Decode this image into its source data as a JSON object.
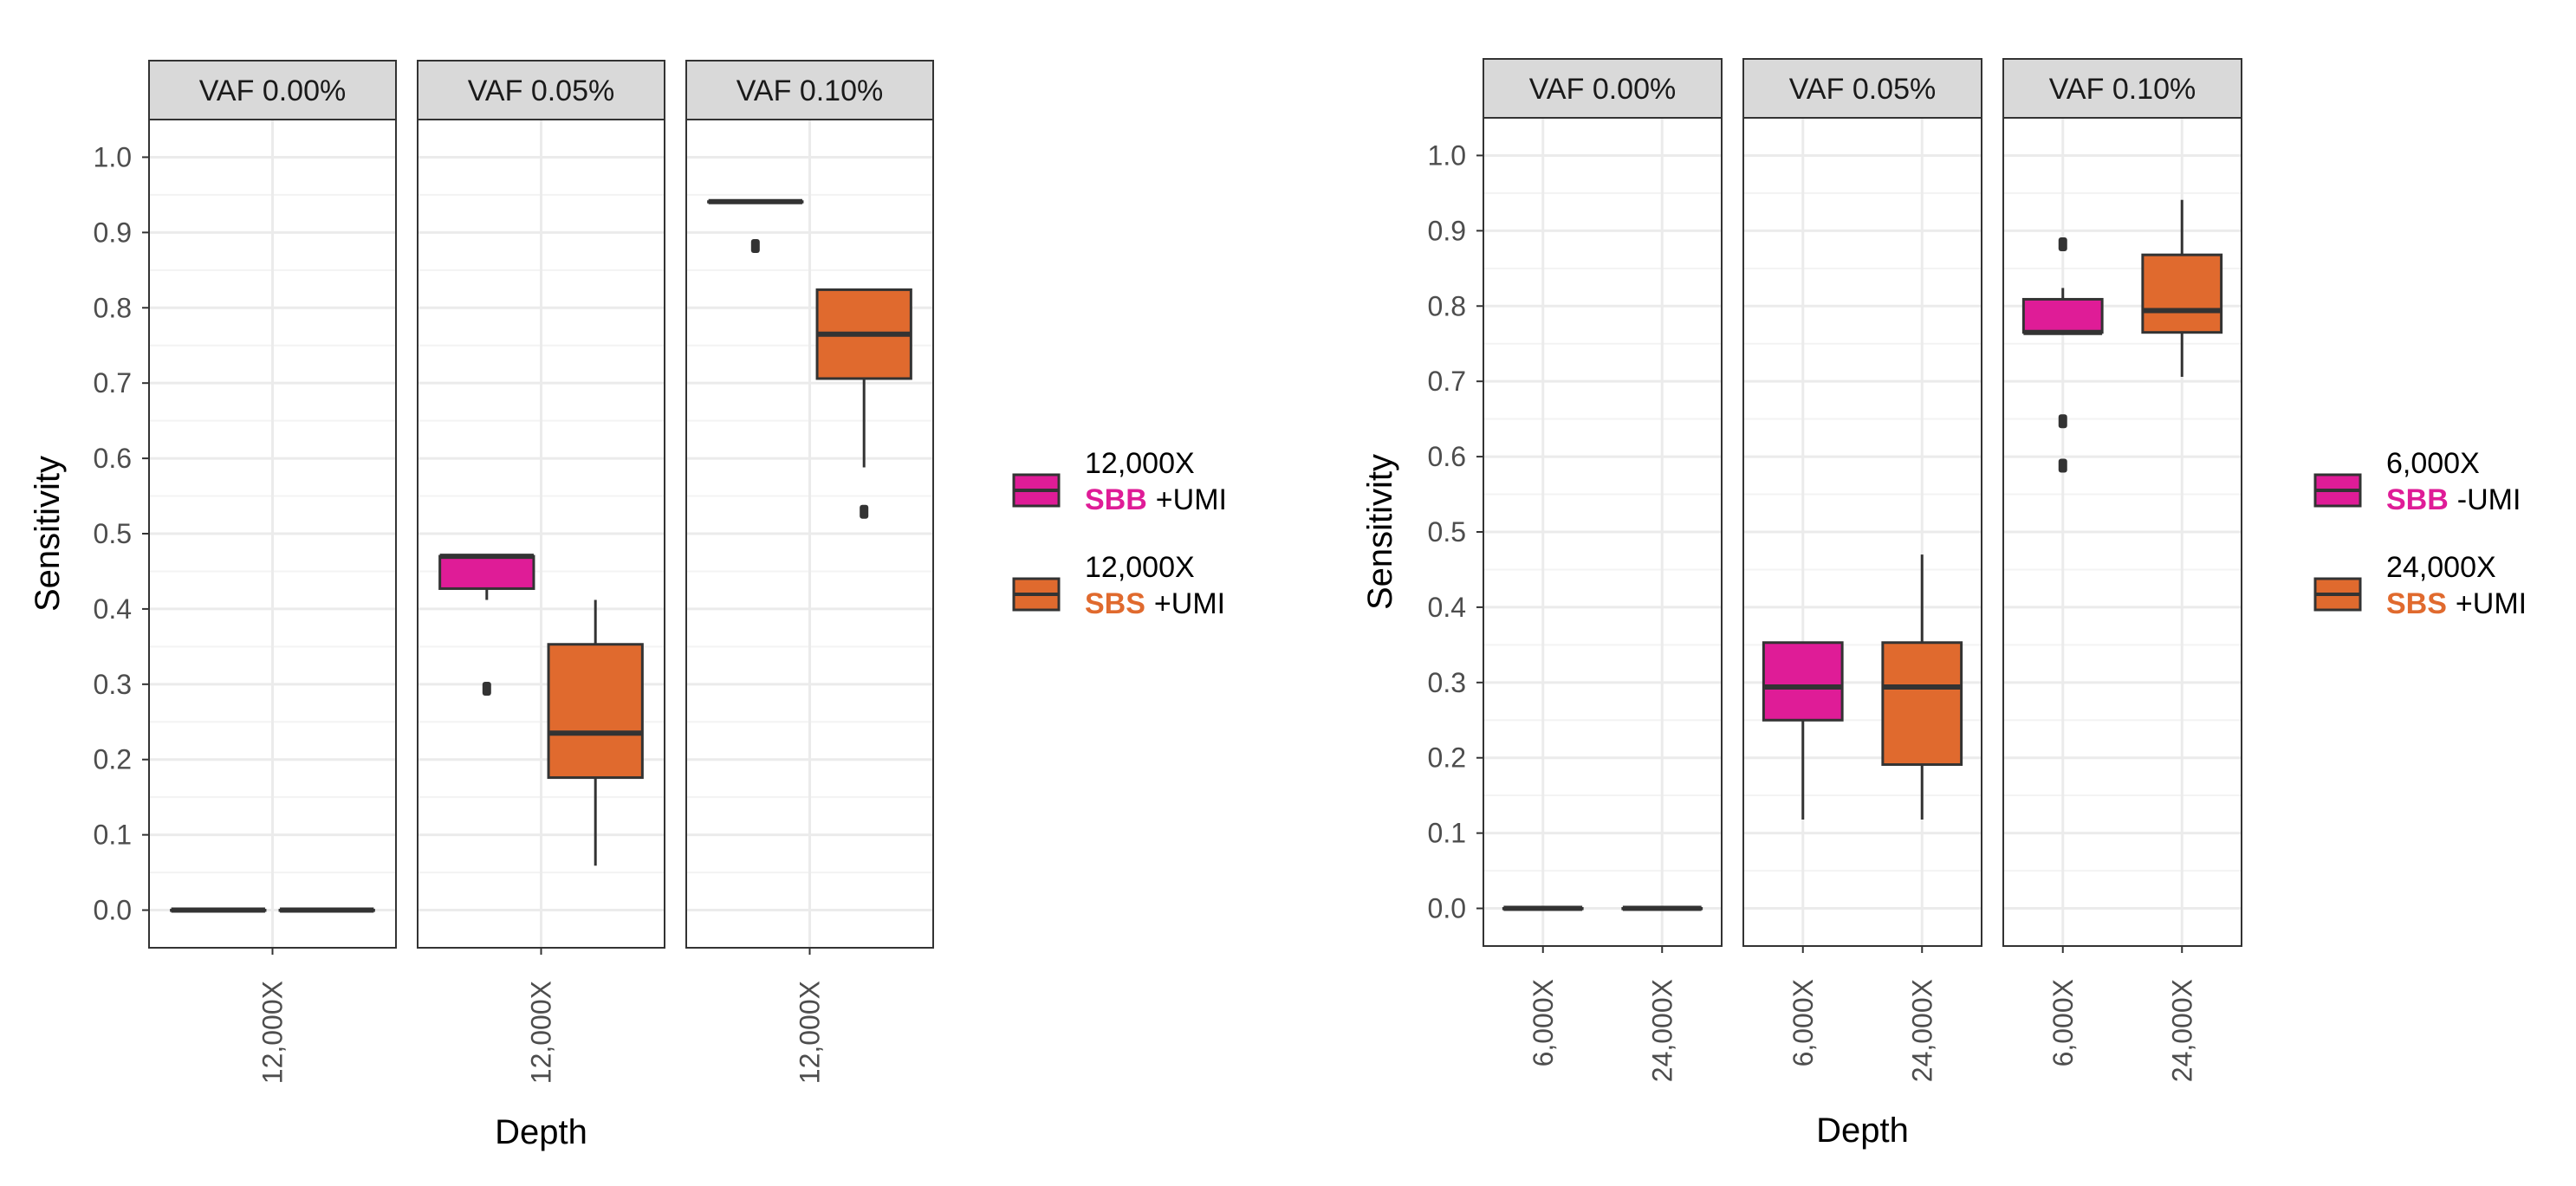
{
  "colors": {
    "SBB": "#df1c97",
    "SBS": "#e06a2e",
    "strip_bg": "#d9d9d9",
    "grid_major": "#ebebeb",
    "grid_minor": "#f3f3f3",
    "frame": "#333333",
    "tick_text": "#4d4d4d"
  },
  "chart_data": [
    {
      "type": "boxplot",
      "title": "",
      "xlabel": "Depth",
      "ylabel": "Sensitivity",
      "ylim": [
        -0.05,
        1.05
      ],
      "y_ticks": [
        0.0,
        0.1,
        0.2,
        0.3,
        0.4,
        0.5,
        0.6,
        0.7,
        0.8,
        0.9,
        1.0
      ],
      "y_tick_labels": [
        "0.0",
        "0.1",
        "0.2",
        "0.3",
        "0.4",
        "0.5",
        "0.6",
        "0.7",
        "0.8",
        "0.9",
        "1.0"
      ],
      "grid": true,
      "legend_position": "right",
      "legend": [
        {
          "key": "SBB",
          "depth": "12,000X",
          "method": "SBB",
          "umi": "+UMI"
        },
        {
          "key": "SBS",
          "depth": "12,000X",
          "method": "SBS",
          "umi": "+UMI"
        }
      ],
      "facets": [
        {
          "strip": "VAF 0.00%",
          "x_ticks": [
            "12,000X"
          ],
          "boxes": [
            {
              "series": "SBB",
              "x": "12,000X",
              "min": 0.0,
              "q1": 0.0,
              "median": 0.0,
              "q3": 0.0,
              "max": 0.0,
              "outliers": []
            },
            {
              "series": "SBS",
              "x": "12,000X",
              "min": 0.0,
              "q1": 0.0,
              "median": 0.0,
              "q3": 0.0,
              "max": 0.0,
              "outliers": []
            }
          ]
        },
        {
          "strip": "VAF 0.05%",
          "x_ticks": [
            "12,000X"
          ],
          "boxes": [
            {
              "series": "SBB",
              "x": "12,000X",
              "min": 0.412,
              "q1": 0.427,
              "median": 0.47,
              "q3": 0.47,
              "max": 0.47,
              "outliers": [
                0.294
              ]
            },
            {
              "series": "SBS",
              "x": "12,000X",
              "min": 0.059,
              "q1": 0.176,
              "median": 0.235,
              "q3": 0.353,
              "max": 0.412,
              "outliers": []
            }
          ]
        },
        {
          "strip": "VAF 0.10%",
          "x_ticks": [
            "12,000X"
          ],
          "boxes": [
            {
              "series": "SBB",
              "x": "12,000X",
              "min": 0.941,
              "q1": 0.941,
              "median": 0.941,
              "q3": 0.941,
              "max": 0.941,
              "outliers": [
                0.882
              ]
            },
            {
              "series": "SBS",
              "x": "12,000X",
              "min": 0.588,
              "q1": 0.706,
              "median": 0.765,
              "q3": 0.824,
              "max": 0.824,
              "outliers": [
                0.529
              ]
            }
          ]
        }
      ]
    },
    {
      "type": "boxplot",
      "title": "",
      "xlabel": "Depth",
      "ylabel": "Sensitivity",
      "ylim": [
        -0.05,
        1.05
      ],
      "y_ticks": [
        0.0,
        0.1,
        0.2,
        0.3,
        0.4,
        0.5,
        0.6,
        0.7,
        0.8,
        0.9,
        1.0
      ],
      "y_tick_labels": [
        "0.0",
        "0.1",
        "0.2",
        "0.3",
        "0.4",
        "0.5",
        "0.6",
        "0.7",
        "0.8",
        "0.9",
        "1.0"
      ],
      "grid": true,
      "legend_position": "right",
      "legend": [
        {
          "key": "SBB",
          "depth": "6,000X",
          "method": "SBB",
          "umi": "-UMI"
        },
        {
          "key": "SBS",
          "depth": "24,000X",
          "method": "SBS",
          "umi": "+UMI"
        }
      ],
      "facets": [
        {
          "strip": "VAF 0.00%",
          "x_ticks": [
            "6,000X",
            "24,000X"
          ],
          "boxes": [
            {
              "series": "SBB",
              "x": "6,000X",
              "min": 0.0,
              "q1": 0.0,
              "median": 0.0,
              "q3": 0.0,
              "max": 0.0,
              "outliers": []
            },
            {
              "series": "SBS",
              "x": "24,000X",
              "min": 0.0,
              "q1": 0.0,
              "median": 0.0,
              "q3": 0.0,
              "max": 0.0,
              "outliers": []
            }
          ]
        },
        {
          "strip": "VAF 0.05%",
          "x_ticks": [
            "6,000X",
            "24,000X"
          ],
          "boxes": [
            {
              "series": "SBB",
              "x": "6,000X",
              "min": 0.118,
              "q1": 0.25,
              "median": 0.294,
              "q3": 0.353,
              "max": 0.353,
              "outliers": []
            },
            {
              "series": "SBS",
              "x": "24,000X",
              "min": 0.118,
              "q1": 0.191,
              "median": 0.294,
              "q3": 0.353,
              "max": 0.47,
              "outliers": []
            }
          ]
        },
        {
          "strip": "VAF 0.10%",
          "x_ticks": [
            "6,000X",
            "24,000X"
          ],
          "boxes": [
            {
              "series": "SBB",
              "x": "6,000X",
              "min": 0.765,
              "q1": 0.765,
              "median": 0.765,
              "q3": 0.809,
              "max": 0.824,
              "outliers": [
                0.588,
                0.647,
                0.882
              ]
            },
            {
              "series": "SBS",
              "x": "24,000X",
              "min": 0.706,
              "q1": 0.765,
              "median": 0.794,
              "q3": 0.868,
              "max": 0.941,
              "outliers": []
            }
          ]
        }
      ]
    }
  ]
}
